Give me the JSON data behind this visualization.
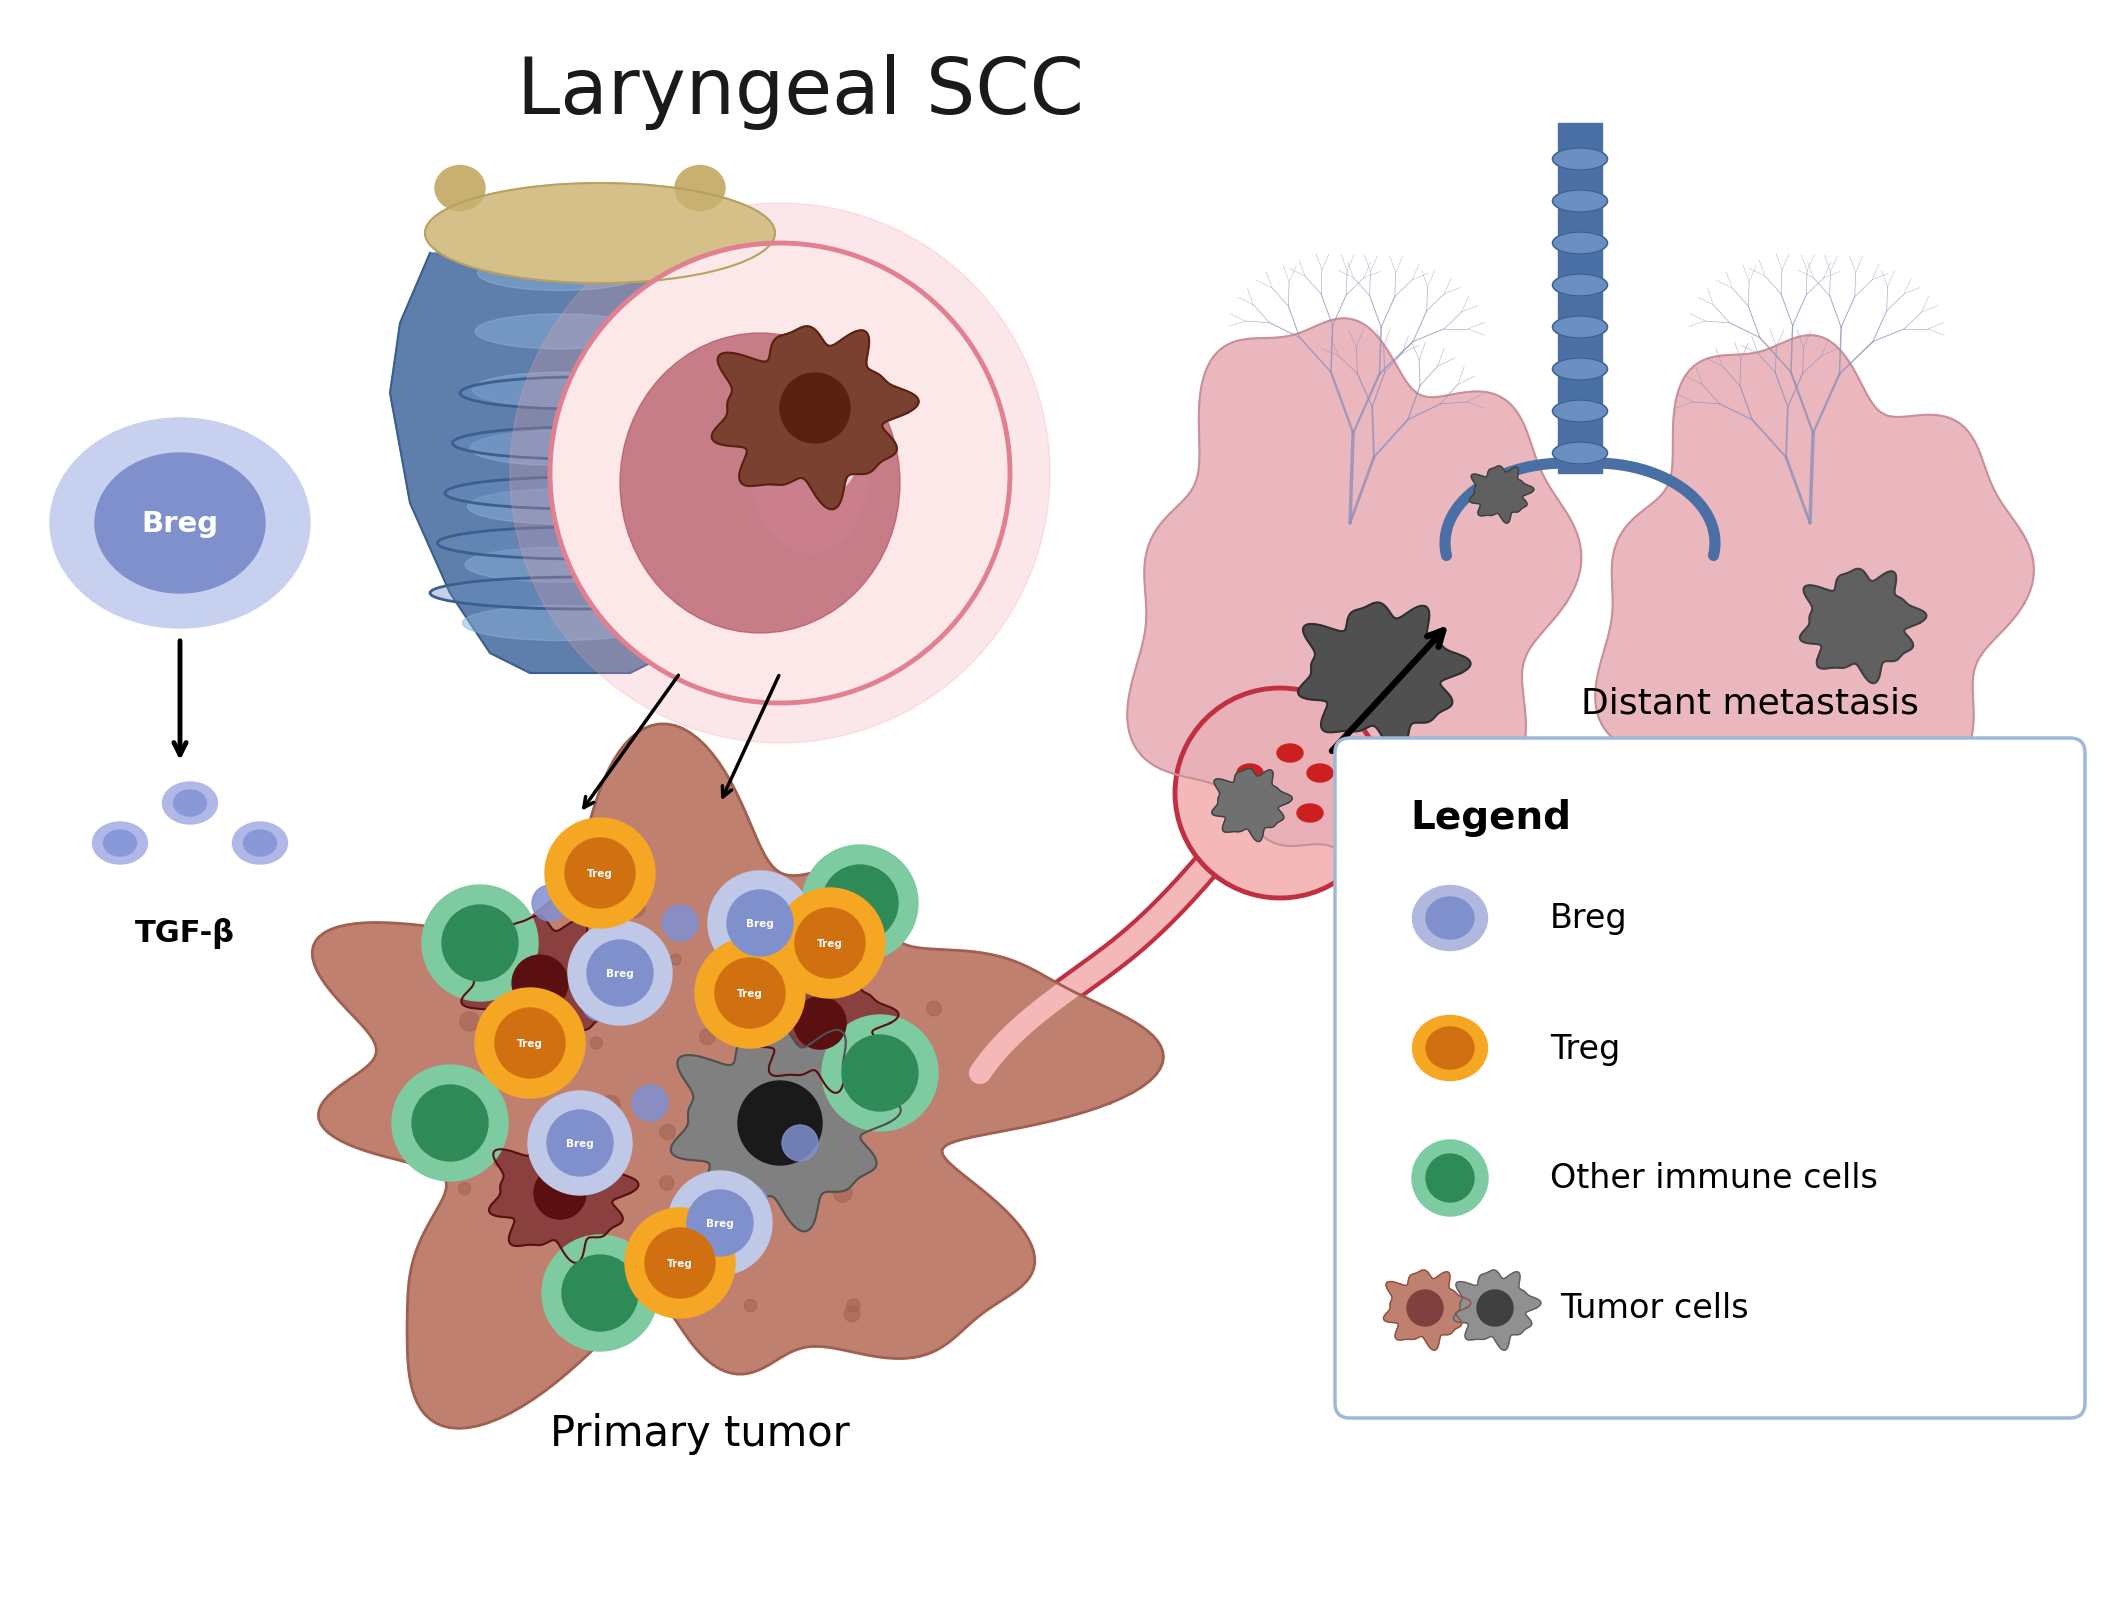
{
  "title": "Laryngeal SCC",
  "title_fontsize": 56,
  "bg_color": "#ffffff",
  "breg_outer": "#c0c8e8",
  "breg_inner": "#8090cc",
  "treg_outer": "#f5a623",
  "treg_inner": "#d07010",
  "green_outer": "#7ecba1",
  "green_inner": "#2e8b57",
  "tumor_brown_fill": "#8b4040",
  "tumor_brown_edge": "#6a2020",
  "tumor_gray_fill": "#808080",
  "tumor_gray_edge": "#505050",
  "primary_tumor_fill": "#c08070",
  "primary_tumor_edge": "#a06050",
  "vessel_red": "#c03040",
  "vessel_pink": "#f4b8b8",
  "lung_fill": "#e8b0b8",
  "lung_edge": "#c89098",
  "larynx_blue": "#4a6fa5",
  "larynx_light": "#8ab0d8",
  "cartilage_color": "#d4c088",
  "closeup_fill": "#fce0e0",
  "closeup_edge": "#e08090",
  "tgfb_label": "TGF-β",
  "primary_tumor_label": "Primary tumor",
  "distant_metastasis_label": "Distant metastasis",
  "legend_title": "Legend"
}
